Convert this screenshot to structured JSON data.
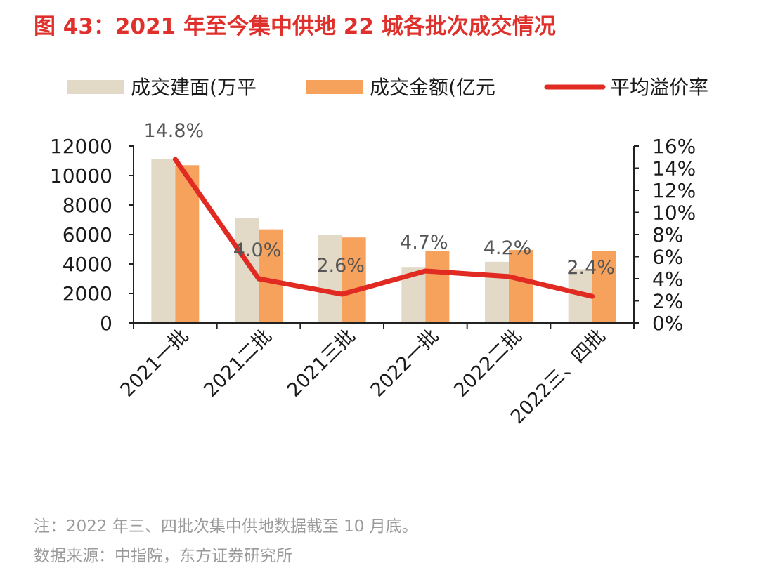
{
  "title": "图 43：2021 年至今集中供地 22 城各批次成交情况",
  "note": "注：2022 年三、四批次集中供地数据截至 10 月底。",
  "source": "数据来源：中指院，东方证券研究所",
  "colors": {
    "title": "#e0302c",
    "area": "#e2dac6",
    "amount": "#f6a25c",
    "premium": "#e02a22",
    "axis": "#222222"
  },
  "chart_data": {
    "type": "bar",
    "categories": [
      "2021一批",
      "2021二批",
      "2021三批",
      "2022一批",
      "2022二批",
      "2022三、四批"
    ],
    "series": [
      {
        "name": "成交建面(万平",
        "type": "bar",
        "axis": "left",
        "values": [
          11100,
          7100,
          6000,
          3800,
          4150,
          3650
        ]
      },
      {
        "name": "成交金额(亿元",
        "type": "bar",
        "axis": "left",
        "values": [
          10700,
          6350,
          5800,
          4900,
          4950,
          4900
        ]
      },
      {
        "name": "平均溢价率",
        "type": "line",
        "axis": "right",
        "values": [
          14.8,
          4.0,
          2.6,
          4.7,
          4.2,
          2.4
        ],
        "labels": [
          "14.8%",
          "4.0%",
          "2.6%",
          "4.7%",
          "4.2%",
          "2.4%"
        ]
      }
    ],
    "y_left": {
      "ylim": [
        0,
        12000
      ],
      "ticks": [
        "0",
        "2000",
        "4000",
        "6000",
        "8000",
        "10000",
        "12000"
      ]
    },
    "y_right": {
      "ylim": [
        0,
        16
      ],
      "ticks": [
        "0%",
        "2%",
        "4%",
        "6%",
        "8%",
        "10%",
        "12%",
        "14%",
        "16%"
      ]
    },
    "legend": "top",
    "grid": false
  }
}
